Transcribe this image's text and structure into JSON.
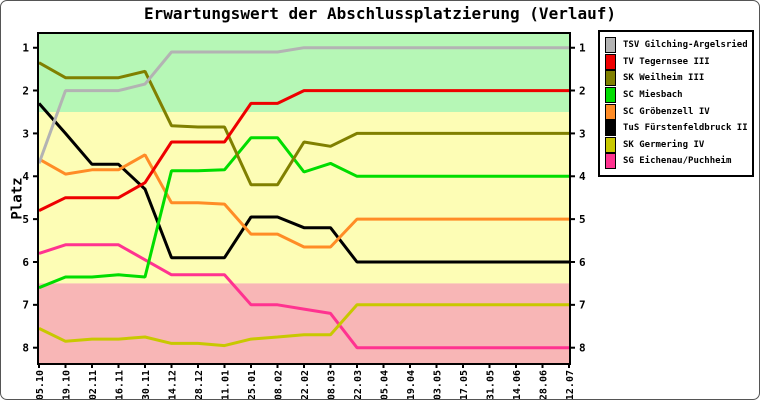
{
  "chart_data": {
    "type": "line",
    "title": "Erwartungswert der Abschlussplatzierung (Verlauf)",
    "xlabel": "",
    "ylabel": "Platz",
    "y_inverted": true,
    "y_ticks": [
      "1",
      "2",
      "3",
      "4",
      "5",
      "6",
      "7",
      "8"
    ],
    "ylim_rank": [
      0.68,
      8.36
    ],
    "grid": false,
    "legend_position": "outside-right",
    "zone_boundaries_rank": [
      2.5,
      6.5
    ],
    "zone_colors": [
      "#b6f7b6",
      "#fdfdb5",
      "#f8b6b6"
    ],
    "zone_names": [
      "promotion-zone",
      "midtable-zone",
      "relegation-zone"
    ],
    "x": [
      "05.10",
      "19.10",
      "02.11",
      "16.11",
      "30.11",
      "14.12",
      "28.12",
      "11.01",
      "25.01",
      "08.02",
      "22.02",
      "08.03",
      "22.03",
      "05.04",
      "19.04",
      "03.05",
      "17.05",
      "31.05",
      "14.06",
      "28.06",
      "12.07"
    ],
    "series": [
      {
        "name": "TSV Gilching-Argelsried",
        "color": "#b3b3b3",
        "values": [
          3.7,
          2.0,
          2.0,
          2.0,
          1.85,
          1.1,
          1.1,
          1.1,
          1.1,
          1.1,
          1.0,
          1.0,
          1.0,
          1.0,
          1.0,
          1.0,
          1.0,
          1.0,
          1.0,
          1.0,
          1.0
        ]
      },
      {
        "name": "TV Tegernsee III",
        "color": "#ee0000",
        "values": [
          4.8,
          4.5,
          4.5,
          4.5,
          4.15,
          3.2,
          3.2,
          3.2,
          2.3,
          2.3,
          2.0,
          2.0,
          2.0,
          2.0,
          2.0,
          2.0,
          2.0,
          2.0,
          2.0,
          2.0,
          2.0
        ]
      },
      {
        "name": "SK Weilheim III",
        "color": "#808000",
        "values": [
          1.35,
          1.7,
          1.7,
          1.7,
          1.55,
          2.82,
          2.85,
          2.85,
          4.2,
          4.2,
          3.2,
          3.3,
          3.0,
          3.0,
          3.0,
          3.0,
          3.0,
          3.0,
          3.0,
          3.0,
          3.0
        ]
      },
      {
        "name": "SC Miesbach",
        "color": "#00dd00",
        "values": [
          6.6,
          6.35,
          6.35,
          6.3,
          6.35,
          3.87,
          3.87,
          3.85,
          3.1,
          3.1,
          3.9,
          3.7,
          4.0,
          4.0,
          4.0,
          4.0,
          4.0,
          4.0,
          4.0,
          4.0,
          4.0
        ]
      },
      {
        "name": "SC Gröbenzell IV",
        "color": "#ff8c26",
        "values": [
          3.6,
          3.95,
          3.85,
          3.85,
          3.5,
          4.62,
          4.62,
          4.65,
          5.35,
          5.35,
          5.65,
          5.65,
          5.0,
          5.0,
          5.0,
          5.0,
          5.0,
          5.0,
          5.0,
          5.0,
          5.0
        ]
      },
      {
        "name": "TuS Fürstenfeldbruck II",
        "color": "#000000",
        "values": [
          2.3,
          3.0,
          3.72,
          3.72,
          4.3,
          5.9,
          5.9,
          5.9,
          4.95,
          4.95,
          5.2,
          5.2,
          6.0,
          6.0,
          6.0,
          6.0,
          6.0,
          6.0,
          6.0,
          6.0,
          6.0
        ]
      },
      {
        "name": "SK Germering IV",
        "color": "#c8c800",
        "values": [
          7.55,
          7.85,
          7.8,
          7.8,
          7.75,
          7.9,
          7.9,
          7.95,
          7.8,
          7.75,
          7.7,
          7.7,
          7.0,
          7.0,
          7.0,
          7.0,
          7.0,
          7.0,
          7.0,
          7.0,
          7.0
        ]
      },
      {
        "name": "SG Eichenau/Puchheim",
        "color": "#ff3390",
        "values": [
          5.8,
          5.6,
          5.6,
          5.6,
          5.95,
          6.3,
          6.3,
          6.3,
          7.0,
          7.0,
          7.1,
          7.2,
          8.0,
          8.0,
          8.0,
          8.0,
          8.0,
          8.0,
          8.0,
          8.0,
          8.0
        ]
      }
    ]
  }
}
